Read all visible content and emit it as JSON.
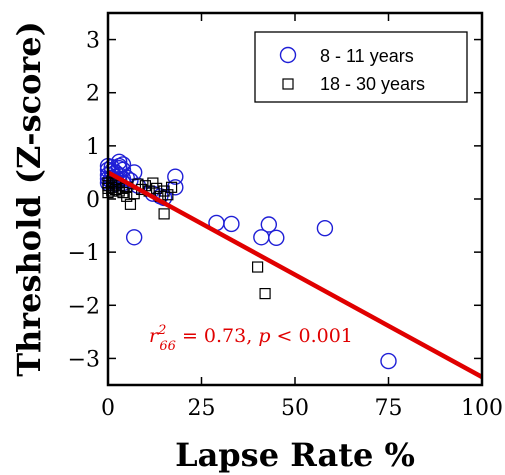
{
  "chart_data": {
    "type": "scatter",
    "xlabel": "Lapse Rate %",
    "ylabel": "Threshold (Z-score)",
    "xlim": [
      0,
      100
    ],
    "ylim": [
      -3.5,
      3.5
    ],
    "xticks": [
      0,
      25,
      50,
      75,
      100
    ],
    "yticks": [
      -3,
      -2,
      -1,
      0,
      1,
      2,
      3
    ],
    "xtick_labels": [
      "0",
      "25",
      "50",
      "75",
      "100"
    ],
    "ytick_labels": [
      "−3",
      "−2",
      "−1",
      "0",
      "1",
      "2",
      "3"
    ],
    "grid": false,
    "legend_position": "top-right",
    "series": [
      {
        "name": "8 - 11 years",
        "marker": "circle",
        "color": "#1f1fd6",
        "points": [
          [
            0,
            0.62
          ],
          [
            0,
            0.55
          ],
          [
            0,
            0.45
          ],
          [
            0,
            0.38
          ],
          [
            0,
            0.3
          ],
          [
            1,
            0.6
          ],
          [
            1,
            0.52
          ],
          [
            1,
            0.4
          ],
          [
            1,
            0.32
          ],
          [
            2,
            0.5
          ],
          [
            2,
            0.42
          ],
          [
            2,
            0.35
          ],
          [
            2,
            0.28
          ],
          [
            3,
            0.7
          ],
          [
            3,
            0.62
          ],
          [
            3,
            0.58
          ],
          [
            3,
            0.45
          ],
          [
            3,
            0.35
          ],
          [
            4,
            0.65
          ],
          [
            4,
            0.55
          ],
          [
            4,
            0.38
          ],
          [
            4,
            0.3
          ],
          [
            5,
            0.4
          ],
          [
            6,
            0.35
          ],
          [
            7,
            0.5
          ],
          [
            7,
            -0.72
          ],
          [
            8,
            0.25
          ],
          [
            12,
            0.1
          ],
          [
            14,
            0.05
          ],
          [
            15,
            0.02
          ],
          [
            18,
            0.42
          ],
          [
            18,
            0.22
          ],
          [
            29,
            -0.45
          ],
          [
            33,
            -0.47
          ],
          [
            41,
            -0.72
          ],
          [
            43,
            -0.48
          ],
          [
            45,
            -0.73
          ],
          [
            58,
            -0.55
          ],
          [
            75,
            -3.05
          ]
        ]
      },
      {
        "name": "18 - 30 years",
        "marker": "square",
        "color": "#000000",
        "points": [
          [
            0,
            0.3
          ],
          [
            0,
            0.25
          ],
          [
            0,
            0.2
          ],
          [
            0,
            0.12
          ],
          [
            1,
            0.32
          ],
          [
            1,
            0.22
          ],
          [
            1,
            0.15
          ],
          [
            2,
            0.28
          ],
          [
            2,
            0.18
          ],
          [
            3,
            0.25
          ],
          [
            3,
            0.15
          ],
          [
            4,
            0.2
          ],
          [
            4,
            0.12
          ],
          [
            5,
            0.22
          ],
          [
            5,
            0.05
          ],
          [
            6,
            -0.1
          ],
          [
            7,
            0.1
          ],
          [
            8,
            0.28
          ],
          [
            9,
            0.18
          ],
          [
            10,
            0.25
          ],
          [
            11,
            0.15
          ],
          [
            12,
            0.3
          ],
          [
            13,
            0.2
          ],
          [
            14,
            0.05
          ],
          [
            15,
            -0.28
          ],
          [
            15,
            0.15
          ],
          [
            16,
            0.08
          ],
          [
            17,
            0.22
          ],
          [
            40,
            -1.28
          ],
          [
            42,
            -1.78
          ]
        ]
      }
    ],
    "fit_line": {
      "color": "#e00000",
      "x": [
        0,
        100
      ],
      "y": [
        0.5,
        -3.35
      ]
    },
    "annotation": {
      "text": "r²₆₆ = 0.73, p < 0.001",
      "color": "#e00000",
      "x": 23,
      "y": -2.6
    }
  }
}
